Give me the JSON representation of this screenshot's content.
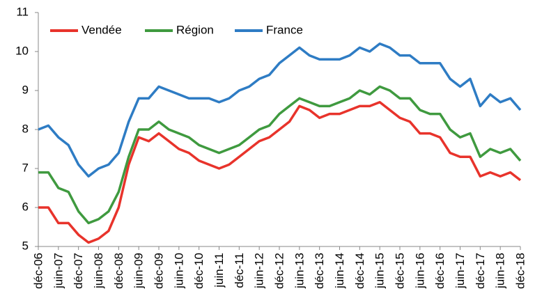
{
  "chart_data": {
    "type": "line",
    "categories": [
      "déc-06",
      null,
      "juin-07",
      null,
      "déc-07",
      null,
      "juin-08",
      null,
      "déc-08",
      null,
      "juin-09",
      null,
      "déc-09",
      null,
      "juin-10",
      null,
      "déc-10",
      null,
      "juin-11",
      null,
      "déc-11",
      null,
      "juin-12",
      null,
      "déc-12",
      null,
      "juin-13",
      null,
      "déc-13",
      null,
      "juin-14",
      null,
      "déc-14",
      null,
      "juin-15",
      null,
      "déc-15",
      null,
      "juin-16",
      null,
      "déc-16",
      null,
      "juin-17",
      null,
      "déc-17",
      null,
      "juin-18",
      null,
      "déc-18"
    ],
    "series": [
      {
        "name": "Vendée",
        "color": "#e8332b",
        "values": [
          6.0,
          6.0,
          5.6,
          5.6,
          5.3,
          5.1,
          5.2,
          5.4,
          6.0,
          7.1,
          7.8,
          7.7,
          7.9,
          7.7,
          7.5,
          7.4,
          7.2,
          7.1,
          7.0,
          7.1,
          7.3,
          7.5,
          7.7,
          7.8,
          8.0,
          8.2,
          8.6,
          8.5,
          8.3,
          8.4,
          8.4,
          8.5,
          8.6,
          8.6,
          8.7,
          8.5,
          8.3,
          8.2,
          7.9,
          7.9,
          7.8,
          7.4,
          7.3,
          7.3,
          6.8,
          6.9,
          6.8,
          6.9,
          6.7
        ]
      },
      {
        "name": "Région",
        "color": "#3f9a3f",
        "values": [
          6.9,
          6.9,
          6.5,
          6.4,
          5.9,
          5.6,
          5.7,
          5.9,
          6.4,
          7.3,
          8.0,
          8.0,
          8.2,
          8.0,
          7.9,
          7.8,
          7.6,
          7.5,
          7.4,
          7.5,
          7.6,
          7.8,
          8.0,
          8.1,
          8.4,
          8.6,
          8.8,
          8.7,
          8.6,
          8.6,
          8.7,
          8.8,
          9.0,
          8.9,
          9.1,
          9.0,
          8.8,
          8.8,
          8.5,
          8.4,
          8.4,
          8.0,
          7.8,
          7.9,
          7.3,
          7.5,
          7.4,
          7.5,
          7.2
        ]
      },
      {
        "name": "France",
        "color": "#2e7cc4",
        "values": [
          8.0,
          8.1,
          7.8,
          7.6,
          7.1,
          6.8,
          7.0,
          7.1,
          7.4,
          8.2,
          8.8,
          8.8,
          9.1,
          9.0,
          8.9,
          8.8,
          8.8,
          8.8,
          8.7,
          8.8,
          9.0,
          9.1,
          9.3,
          9.4,
          9.7,
          9.9,
          10.1,
          9.9,
          9.8,
          9.8,
          9.8,
          9.9,
          10.1,
          10.0,
          10.2,
          10.1,
          9.9,
          9.9,
          9.7,
          9.7,
          9.7,
          9.3,
          9.1,
          9.3,
          8.6,
          8.9,
          8.7,
          8.8,
          8.5
        ]
      }
    ],
    "ylim": [
      5,
      11
    ],
    "yticks": [
      5,
      6,
      7,
      8,
      9,
      10,
      11
    ],
    "grid": false,
    "legend": "top-left"
  }
}
